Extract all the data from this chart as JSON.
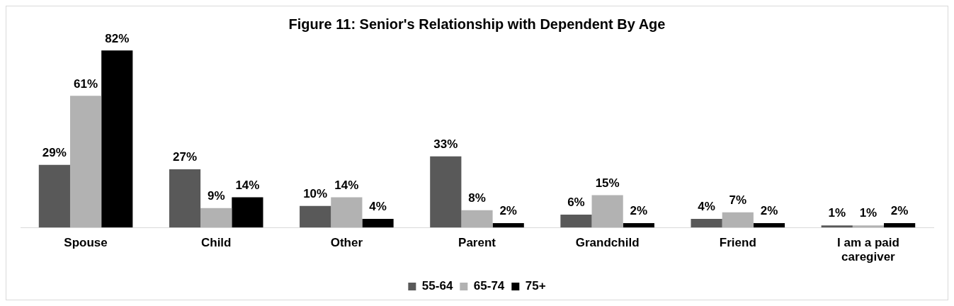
{
  "chart_data": {
    "type": "bar",
    "title": "Figure 11: Senior's Relationship with Dependent By Age",
    "categories": [
      "Spouse",
      "Child",
      "Other",
      "Parent",
      "Grandchild",
      "Friend",
      "I am a paid caregiver"
    ],
    "series": [
      {
        "name": "55-64",
        "color": "#595959",
        "values": [
          29,
          27,
          10,
          33,
          6,
          4,
          1
        ],
        "value_labels": [
          "29%",
          "27%",
          "10%",
          "33%",
          "6%",
          "4%",
          "1%"
        ]
      },
      {
        "name": "65-74",
        "color": "#b2b2b2",
        "values": [
          61,
          9,
          14,
          8,
          15,
          7,
          1
        ],
        "value_labels": [
          "61%",
          "9%",
          "14%",
          "8%",
          "15%",
          "7%",
          "1%"
        ]
      },
      {
        "name": "75+",
        "color": "#000000",
        "values": [
          82,
          14,
          4,
          2,
          2,
          2,
          2
        ],
        "value_labels": [
          "82%",
          "14%",
          "4%",
          "2%",
          "2%",
          "2%",
          "2%"
        ]
      }
    ],
    "grid": false,
    "legend": "bottom"
  }
}
